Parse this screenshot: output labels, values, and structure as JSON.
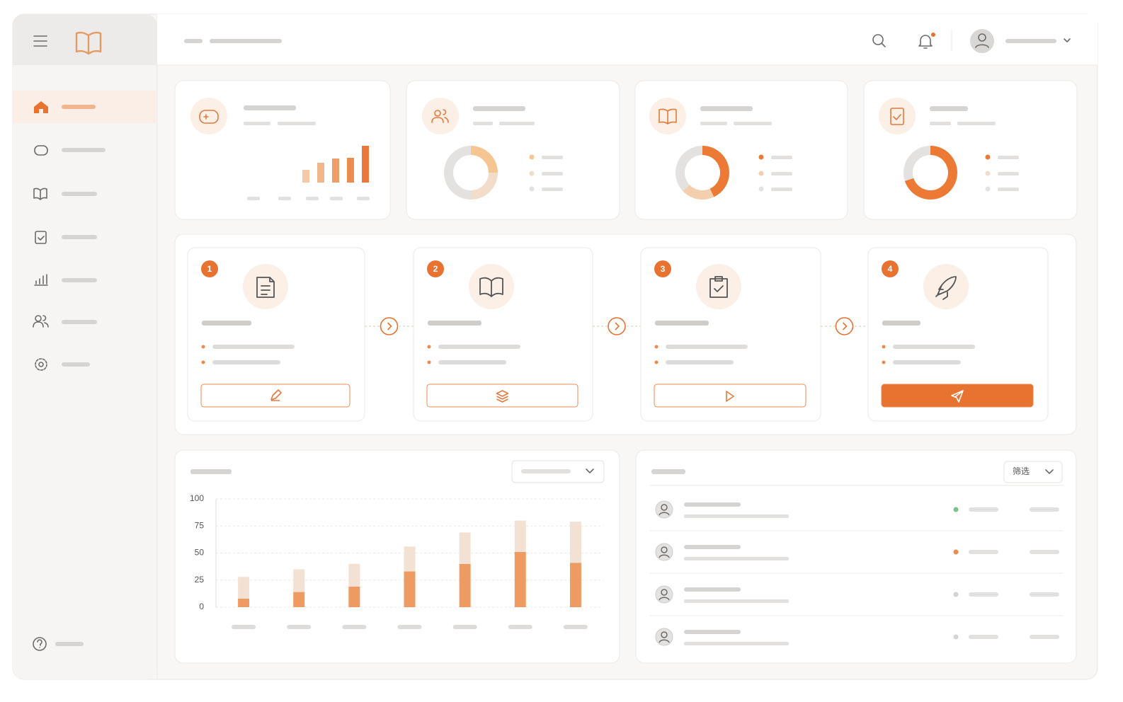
{
  "steps": [
    {
      "number": "1"
    },
    {
      "number": "2"
    },
    {
      "number": "3"
    },
    {
      "number": "4"
    }
  ],
  "filter_label": "筛选",
  "chart_data": [
    {
      "type": "bar",
      "categories": [
        null,
        null,
        null,
        null,
        null
      ],
      "values": [
        18,
        28,
        34,
        35,
        52
      ],
      "colors": [
        "#f4c9a4",
        "#f1b68a",
        "#ee9f68",
        "#ec8c4e",
        "#e9783a"
      ],
      "ylim": [
        0,
        60
      ]
    },
    {
      "type": "pie",
      "values": [
        25,
        25,
        50
      ],
      "colors": [
        "#f5c592",
        "#f1ddc9",
        "#e4e2e0"
      ]
    },
    {
      "type": "pie",
      "values": [
        43,
        20,
        37
      ],
      "colors": [
        "#ec7a35",
        "#f3cfae",
        "#e4e2e0"
      ]
    },
    {
      "type": "pie",
      "values": [
        70,
        30
      ],
      "colors": [
        "#ec7a35",
        "#e4e2e0"
      ]
    },
    {
      "type": "stacked-bar",
      "categories": [
        null,
        null,
        null,
        null,
        null,
        null,
        null
      ],
      "series": [
        {
          "color": "#ee9a63",
          "values": [
            8,
            14,
            19,
            33,
            40,
            51,
            41
          ]
        },
        {
          "color": "#f3e2d4",
          "values": [
            20,
            21,
            21,
            23,
            29,
            29,
            38
          ]
        }
      ],
      "ylim": [
        0,
        100
      ],
      "yticks": [
        0,
        25,
        50,
        75,
        100
      ],
      "grid": true
    }
  ]
}
